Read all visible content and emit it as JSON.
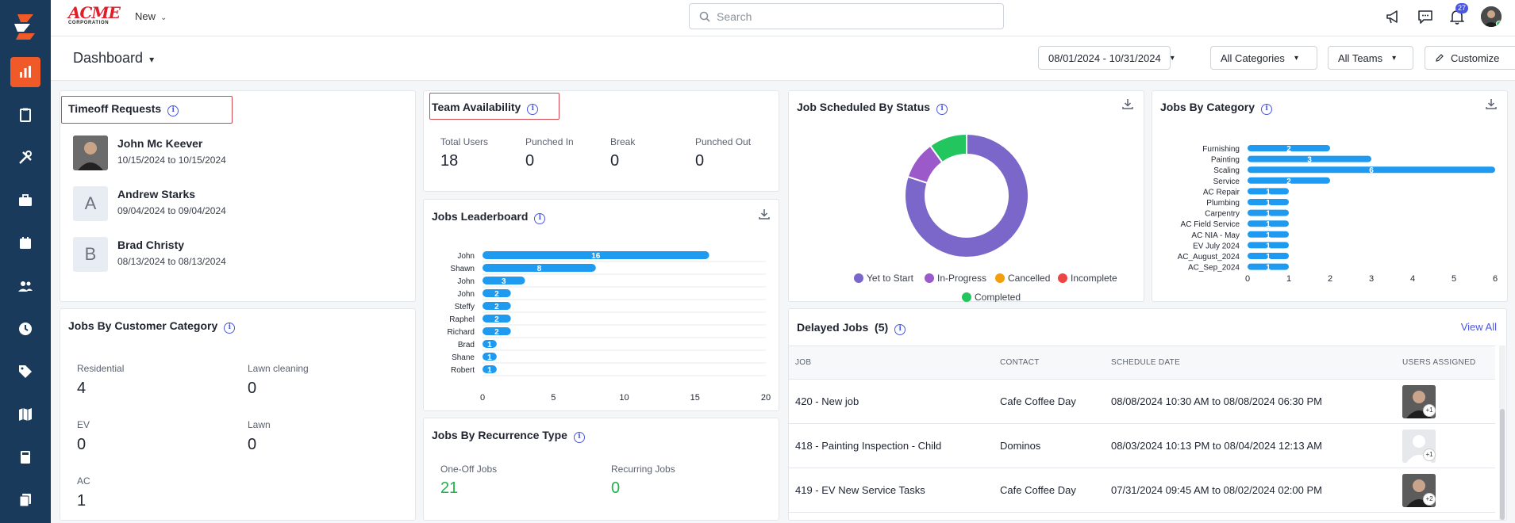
{
  "brand": {
    "name": "ACME",
    "sub": "CORPORATION"
  },
  "topbar": {
    "new_label": "New",
    "search_placeholder": "Search",
    "notification_count": "27"
  },
  "dashboard": {
    "title": "Dashboard"
  },
  "filters": {
    "date_range": "08/01/2024 - 10/31/2024",
    "categories": "All Categories",
    "teams": "All Teams",
    "customize": "Customize"
  },
  "timeoff": {
    "title": "Timeoff Requests",
    "items": [
      {
        "initial": "",
        "name": "John Mc Keever",
        "dates": "10/15/2024 to 10/15/2024"
      },
      {
        "initial": "A",
        "name": "Andrew Starks",
        "dates": "09/04/2024 to 09/04/2024"
      },
      {
        "initial": "B",
        "name": "Brad Christy",
        "dates": "08/13/2024 to 08/13/2024"
      }
    ]
  },
  "team_availability": {
    "title": "Team Availability",
    "stats": [
      {
        "label": "Total Users",
        "value": "18"
      },
      {
        "label": "Punched In",
        "value": "0"
      },
      {
        "label": "Break",
        "value": "0"
      },
      {
        "label": "Punched Out",
        "value": "0"
      }
    ]
  },
  "customer_category": {
    "title": "Jobs By Customer Category",
    "stats": [
      {
        "label": "Residential",
        "value": "4"
      },
      {
        "label": "Lawn cleaning",
        "value": "0"
      },
      {
        "label": "EV",
        "value": "0"
      },
      {
        "label": "Lawn",
        "value": "0"
      },
      {
        "label": "AC",
        "value": "1"
      }
    ]
  },
  "recurrence": {
    "title": "Jobs By Recurrence Type",
    "stats": [
      {
        "label": "One-Off Jobs",
        "value": "21"
      },
      {
        "label": "Recurring Jobs",
        "value": "0"
      }
    ]
  },
  "leaderboard": {
    "title": "Jobs Leaderboard"
  },
  "status_chart": {
    "title": "Job Scheduled By Status"
  },
  "category_chart": {
    "title": "Jobs By Category"
  },
  "delayed": {
    "title": "Delayed Jobs",
    "count": "(5)",
    "view_all": "View All",
    "columns": [
      "JOB",
      "CONTACT",
      "SCHEDULE DATE",
      "USERS ASSIGNED"
    ],
    "rows": [
      {
        "job": "420 - New job",
        "contact": "Cafe Coffee Day",
        "schedule": "08/08/2024 10:30 AM to 08/08/2024 06:30 PM",
        "extra": "+1"
      },
      {
        "job": "418 - Painting Inspection - Child",
        "contact": "Dominos",
        "schedule": "08/03/2024 10:13 PM to 08/04/2024 12:13 AM",
        "extra": "+1"
      },
      {
        "job": "419 - EV New Service Tasks",
        "contact": "Cafe Coffee Day",
        "schedule": "07/31/2024 09:45 AM to 08/02/2024 02:00 PM",
        "extra": "+2"
      }
    ]
  },
  "colors": {
    "accent": "#4a57e0",
    "sidebar": "#1a3a5c",
    "active": "#f05a28",
    "bar": "#1e9bf0",
    "green": "#22b14c"
  },
  "chart_data": [
    {
      "type": "bar",
      "orientation": "horizontal",
      "categories": [
        "John",
        "Shawn",
        "John",
        "John",
        "Steffy",
        "Raphel",
        "Richard",
        "Brad",
        "Shane",
        "Robert"
      ],
      "values": [
        16,
        8,
        3,
        2,
        2,
        2,
        2,
        1,
        1,
        1
      ],
      "xlim": [
        0,
        20
      ],
      "xticks": [
        "0",
        "5",
        "10",
        "15",
        "20"
      ],
      "color": "#1e9bf0"
    },
    {
      "type": "pie",
      "style": "donut",
      "labels": [
        "Yet to Start",
        "In-Progress",
        "Cancelled",
        "Incomplete",
        "Completed"
      ],
      "values": [
        16,
        2,
        0,
        0,
        2
      ],
      "colors": [
        "#7a67c9",
        "#9b59c9",
        "#f59e0b",
        "#ef4444",
        "#22c55e"
      ],
      "legend": "bottom"
    },
    {
      "type": "bar",
      "orientation": "horizontal",
      "categories": [
        "Furnishing",
        "Painting",
        "Scaling",
        "Service",
        "AC Repair",
        "Plumbing",
        "Carpentry",
        "AC Field Service",
        "AC NIA - May",
        "EV July 2024",
        "AC_August_2024",
        "AC_Sep_2024"
      ],
      "values": [
        2,
        3,
        6,
        2,
        1,
        1,
        1,
        1,
        1,
        1,
        1,
        1
      ],
      "xlim": [
        0,
        6
      ],
      "xticks": [
        "0",
        "1",
        "2",
        "3",
        "4",
        "5",
        "6"
      ],
      "color": "#1e9bf0"
    }
  ]
}
